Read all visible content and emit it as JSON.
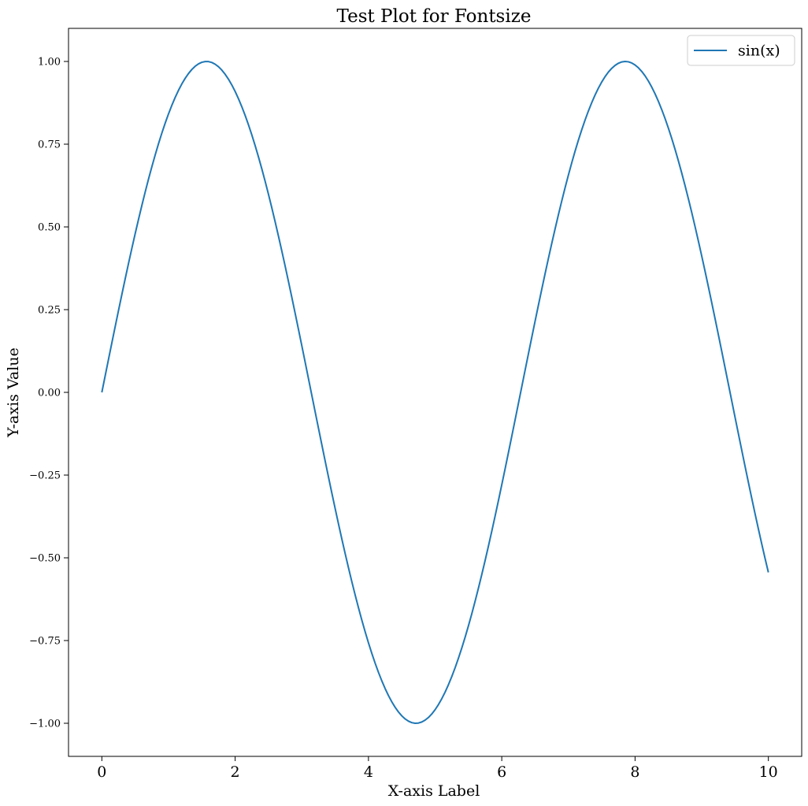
{
  "colors": {
    "series": "#1f77b4",
    "axes": "#000000",
    "background": "#ffffff",
    "legend_border": "#cccccc"
  },
  "chart_data": {
    "type": "line",
    "title": "Test Plot for Fontsize",
    "xlabel": "X-axis Label",
    "ylabel": "Y-axis Value",
    "xlim": [
      -0.5,
      10.5
    ],
    "ylim": [
      -1.1,
      1.1
    ],
    "grid": false,
    "legend_position": "top-right",
    "xticks": [
      0,
      2,
      4,
      6,
      8,
      10
    ],
    "xtick_labels": [
      "0",
      "2",
      "4",
      "6",
      "8",
      "10"
    ],
    "yticks": [
      1.0,
      0.75,
      0.5,
      0.25,
      0.0,
      -0.25,
      -0.5,
      -0.75,
      -1.0
    ],
    "ytick_labels": [
      "1.00",
      "0.75",
      "0.50",
      "0.25",
      "0.00",
      "−0.25",
      "−0.50",
      "−0.75",
      "−1.00"
    ],
    "series": [
      {
        "name": "sin(x)",
        "x": [
          0,
          0.5,
          1,
          1.5,
          1.5708,
          2,
          2.5,
          3,
          3.5,
          4,
          4.5,
          4.7124,
          5,
          5.5,
          6,
          6.5,
          7,
          7.5,
          7.854,
          8,
          8.5,
          9,
          9.5,
          10
        ],
        "y": [
          0,
          0.479,
          0.841,
          0.997,
          1.0,
          0.909,
          0.598,
          0.141,
          -0.351,
          -0.757,
          -0.977,
          -1.0,
          -0.959,
          -0.706,
          -0.279,
          0.215,
          0.657,
          0.938,
          1.0,
          0.989,
          0.798,
          0.412,
          -0.075,
          -0.544
        ]
      }
    ]
  }
}
